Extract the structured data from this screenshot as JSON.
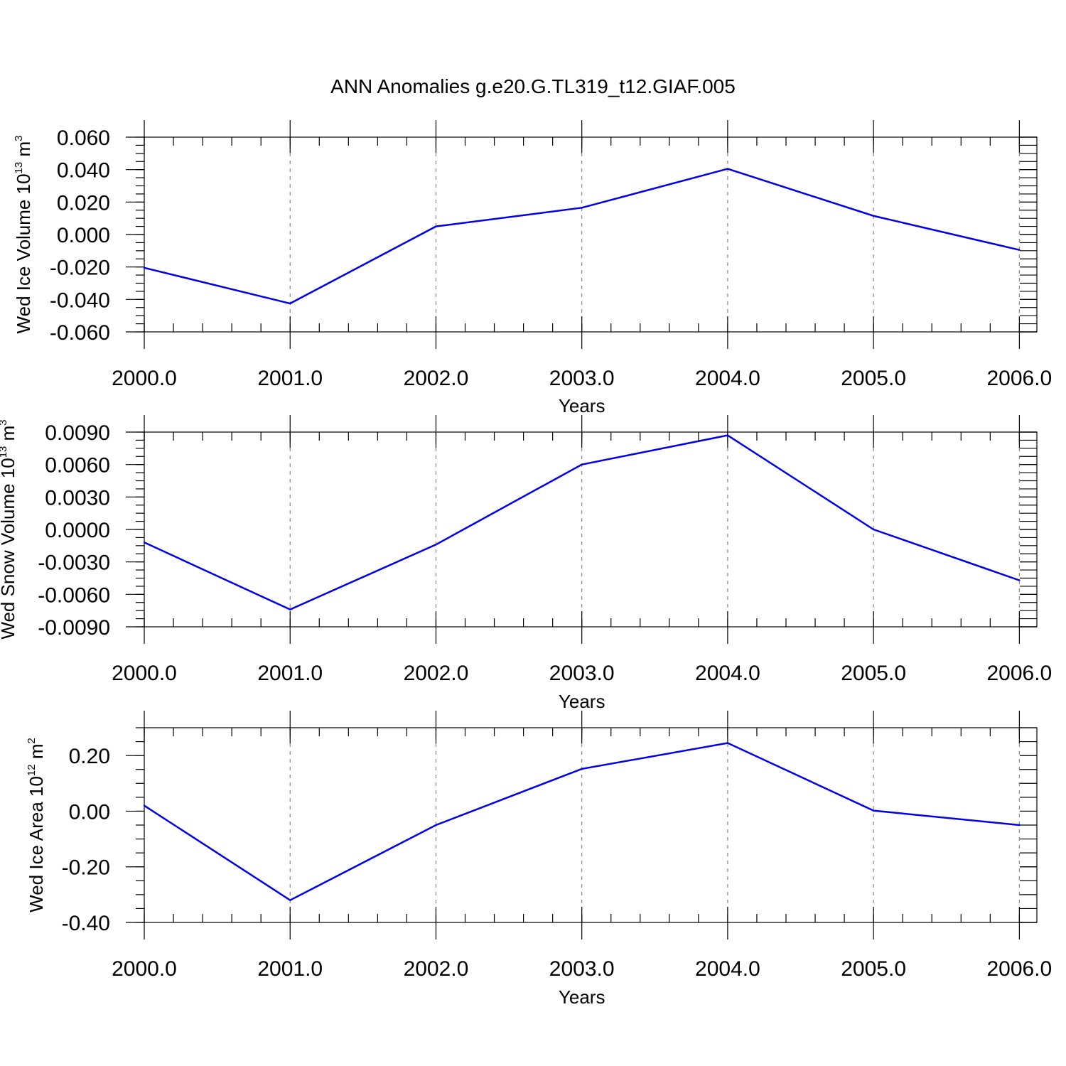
{
  "figure": {
    "title": "ANN Anomalies g.e20.G.TL319_t12.GIAF.005"
  },
  "colors": {
    "line": "#0000ee",
    "axis": "#000000",
    "grid": "#888888",
    "background": "#ffffff"
  },
  "chart_data": [
    {
      "type": "line",
      "title": "",
      "xlabel": "Years",
      "ylabel": {
        "text": "Wed Ice Volume 10",
        "exp": "13",
        "unit": " m",
        "unit_exp": "3"
      },
      "x": [
        2000,
        2001,
        2002,
        2003,
        2004,
        2005,
        2006
      ],
      "x_tick_labels": [
        "2000.0",
        "2001.0",
        "2002.0",
        "2003.0",
        "2004.0",
        "2005.0",
        "2006.0"
      ],
      "xlim": [
        2000,
        2006.12
      ],
      "ylim": [
        -0.06,
        0.06
      ],
      "y_ticks": [
        0.06,
        0.04,
        0.02,
        0.0,
        -0.02,
        -0.04,
        -0.06
      ],
      "y_tick_labels": [
        "0.060",
        "0.040",
        "0.020",
        "0.000",
        "-0.020",
        "-0.040",
        "-0.060"
      ],
      "y_minor_step": 0.005,
      "x_minor_step": 0.2,
      "grid": "x-major dashed",
      "series": [
        {
          "values": [
            -0.0205,
            -0.0425,
            0.005,
            0.0165,
            0.0405,
            0.0115,
            -0.0095
          ]
        }
      ]
    },
    {
      "type": "line",
      "title": "",
      "xlabel": "Years",
      "ylabel": {
        "text": "Wed Snow Volume 10",
        "exp": "13",
        "unit": " m",
        "unit_exp": "3"
      },
      "x": [
        2000,
        2001,
        2002,
        2003,
        2004,
        2005,
        2006
      ],
      "x_tick_labels": [
        "2000.0",
        "2001.0",
        "2002.0",
        "2003.0",
        "2004.0",
        "2005.0",
        "2006.0"
      ],
      "xlim": [
        2000,
        2006.12
      ],
      "ylim": [
        -0.009,
        0.009
      ],
      "y_ticks": [
        0.009,
        0.006,
        0.003,
        0.0,
        -0.003,
        -0.006,
        -0.009
      ],
      "y_tick_labels": [
        "0.0090",
        "0.0060",
        "0.0030",
        "0.0000",
        "-0.0030",
        "-0.0060",
        "-0.0090"
      ],
      "y_minor_step": 0.00075,
      "x_minor_step": 0.2,
      "grid": "x-major dashed",
      "series": [
        {
          "values": [
            -0.0012,
            -0.0074,
            -0.0014,
            0.006,
            0.0087,
            0.0,
            -0.0047
          ]
        }
      ]
    },
    {
      "type": "line",
      "title": "",
      "xlabel": "Years",
      "ylabel": {
        "text": "Wed Ice Area 10",
        "exp": "12",
        "unit": " m",
        "unit_exp": "2"
      },
      "x": [
        2000,
        2001,
        2002,
        2003,
        2004,
        2005,
        2006
      ],
      "x_tick_labels": [
        "2000.0",
        "2001.0",
        "2002.0",
        "2003.0",
        "2004.0",
        "2005.0",
        "2006.0"
      ],
      "xlim": [
        2000,
        2006.12
      ],
      "ylim": [
        -0.4,
        0.3
      ],
      "y_ticks": [
        0.2,
        0.0,
        -0.2,
        -0.4
      ],
      "y_tick_labels": [
        "0.20",
        "0.00",
        "-0.20",
        "-0.40"
      ],
      "y_minor_step": 0.05,
      "x_minor_step": 0.2,
      "grid": "x-major dashed",
      "series": [
        {
          "values": [
            0.02,
            -0.32,
            -0.05,
            0.152,
            0.245,
            0.002,
            -0.05
          ]
        }
      ]
    }
  ]
}
